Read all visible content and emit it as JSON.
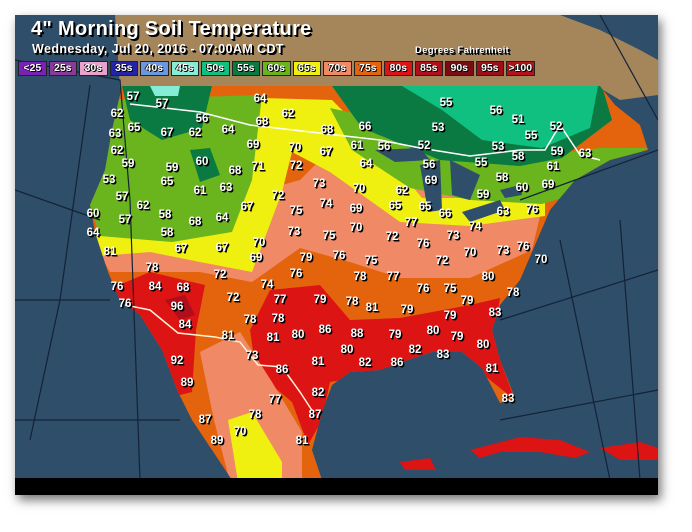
{
  "header": {
    "title": "4\" Morning Soil Temperature",
    "subtitle": "Wednesday, Jul 20, 2016 - 07:00AM CDT",
    "units": "Degrees Fahrenheit"
  },
  "legend": [
    {
      "label": "<25",
      "color": "#7a22b8"
    },
    {
      "label": "25s",
      "color": "#8a3a9a"
    },
    {
      "label": "30s",
      "color": "#e8a2cc"
    },
    {
      "label": "35s",
      "color": "#2424a8"
    },
    {
      "label": "40s",
      "color": "#6a98e0"
    },
    {
      "label": "45s",
      "color": "#86ecd6"
    },
    {
      "label": "50s",
      "color": "#10c080"
    },
    {
      "label": "55s",
      "color": "#0a7a42"
    },
    {
      "label": "60s",
      "color": "#6ab41e"
    },
    {
      "label": "65s",
      "color": "#f0f010"
    },
    {
      "label": "70s",
      "color": "#f08a66"
    },
    {
      "label": "75s",
      "color": "#e4640e"
    },
    {
      "label": "80s",
      "color": "#dc1414"
    },
    {
      "label": "85s",
      "color": "#b00e1a"
    },
    {
      "label": "90s",
      "color": "#7a0c14"
    },
    {
      "label": "95s",
      "color": "#9a1016"
    },
    {
      "label": ">100",
      "color": "#b01418"
    }
  ],
  "colors": {
    "ocean": "#2e4e69",
    "land_outside": "#a5865a",
    "border": "#ffffff"
  },
  "stations": [
    "57",
    "57",
    "64",
    "62",
    "62",
    "65",
    "56",
    "68",
    "68",
    "66",
    "55",
    "56",
    "51",
    "53",
    "55",
    "52",
    "63",
    "67",
    "62",
    "64",
    "69",
    "70",
    "67",
    "61",
    "56",
    "52",
    "53",
    "55",
    "58",
    "59",
    "63",
    "62",
    "59",
    "59",
    "60",
    "68",
    "71",
    "72",
    "64",
    "56",
    "61",
    "53",
    "65",
    "61",
    "63",
    "73",
    "70",
    "62",
    "69",
    "58",
    "60",
    "69",
    "57",
    "62",
    "58",
    "67",
    "72",
    "75",
    "74",
    "69",
    "65",
    "65",
    "66",
    "77",
    "59",
    "63",
    "76",
    "60",
    "57",
    "68",
    "64",
    "73",
    "75",
    "70",
    "72",
    "76",
    "73",
    "74",
    "76",
    "64",
    "58",
    "81",
    "67",
    "67",
    "70",
    "69",
    "79",
    "76",
    "75",
    "72",
    "70",
    "73",
    "70",
    "76",
    "72",
    "78",
    "78",
    "77",
    "80",
    "76",
    "75",
    "78",
    "78",
    "81",
    "79",
    "79",
    "79",
    "83",
    "88",
    "79",
    "80",
    "79",
    "80",
    "80",
    "82",
    "86",
    "82",
    "83",
    "81",
    "83",
    "76",
    "84",
    "68",
    "76",
    "96",
    "84",
    "72",
    "74",
    "77",
    "79",
    "78",
    "78",
    "81",
    "80",
    "86",
    "81",
    "73",
    "92",
    "81",
    "86",
    "89",
    "82",
    "77",
    "87",
    "78",
    "87",
    "70",
    "89",
    "81"
  ]
}
